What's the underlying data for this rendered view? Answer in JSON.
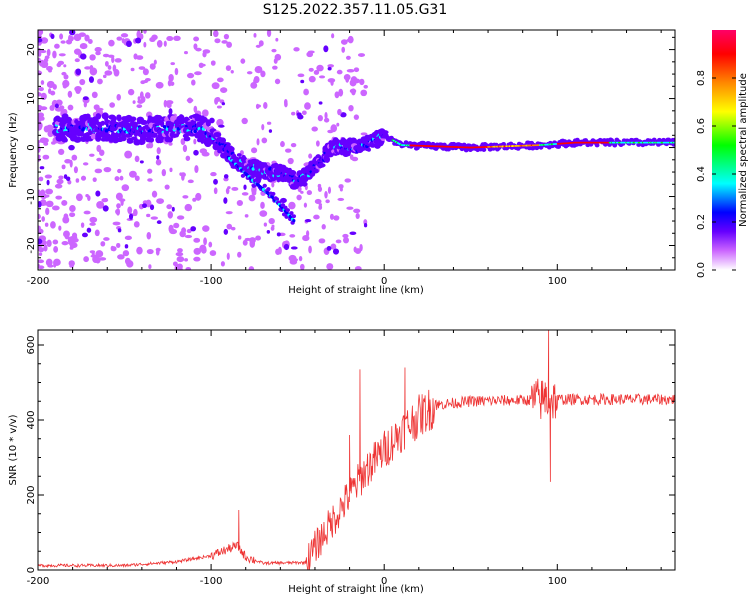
{
  "title": "S125.2022.357.11.05.G31",
  "chart_data": [
    {
      "type": "heatmap",
      "xlabel": "Height of straight line (km)",
      "ylabel": "Frequency (Hz)",
      "xlim": [
        -200,
        168
      ],
      "ylim": [
        -25,
        24
      ],
      "x_ticks": [
        -200,
        -100,
        0,
        100
      ],
      "y_ticks": [
        -20,
        -10,
        0,
        10,
        20
      ],
      "colorbar": {
        "label": "Normalized spectral amplitude",
        "range": [
          0,
          1
        ],
        "ticks": [
          "0.0",
          "0.2",
          "0.4",
          "0.6",
          "0.8"
        ],
        "colormap": [
          "#ffffff",
          "#cc66ff",
          "#6600ff",
          "#0000ff",
          "#00ffff",
          "#00ff00",
          "#ffff00",
          "#ff8800",
          "#ff0000",
          "#ff0066"
        ]
      },
      "ridge": [
        {
          "x": -180,
          "y": 4
        },
        {
          "x": -160,
          "y": 4
        },
        {
          "x": -140,
          "y": 3.5
        },
        {
          "x": -120,
          "y": 4
        },
        {
          "x": -105,
          "y": 4
        },
        {
          "x": -95,
          "y": 1
        },
        {
          "x": -85,
          "y": -3
        },
        {
          "x": -70,
          "y": -5
        },
        {
          "x": -60,
          "y": -5
        },
        {
          "x": -50,
          "y": -7
        },
        {
          "x": -40,
          "y": -4
        },
        {
          "x": -30,
          "y": 0
        },
        {
          "x": -15,
          "y": 0
        },
        {
          "x": 0,
          "y": 2.5
        },
        {
          "x": 10,
          "y": 0.5
        },
        {
          "x": 50,
          "y": 0
        },
        {
          "x": 90,
          "y": 0.5
        },
        {
          "x": 110,
          "y": 1
        },
        {
          "x": 168,
          "y": 1
        }
      ],
      "secondary_ridge": [
        {
          "x": -90,
          "y": -2
        },
        {
          "x": -75,
          "y": -7
        },
        {
          "x": -65,
          "y": -10
        },
        {
          "x": -57,
          "y": -13
        },
        {
          "x": -52,
          "y": -15
        }
      ]
    },
    {
      "type": "line",
      "xlabel": "Height of straight line (km)",
      "ylabel": "SNR (10 * v/v)",
      "xlim": [
        -200,
        168
      ],
      "ylim": [
        0,
        640
      ],
      "x_ticks": [
        -200,
        -100,
        0,
        100
      ],
      "y_ticks": [
        0,
        200,
        400,
        600
      ],
      "series": [
        {
          "color": "#ee3333",
          "trend": [
            {
              "x": -200,
              "y": 12
            },
            {
              "x": -150,
              "y": 12
            },
            {
              "x": -120,
              "y": 22
            },
            {
              "x": -100,
              "y": 38
            },
            {
              "x": -85,
              "y": 65
            },
            {
              "x": -80,
              "y": 35
            },
            {
              "x": -70,
              "y": 18
            },
            {
              "x": -45,
              "y": 20
            },
            {
              "x": -40,
              "y": 60
            },
            {
              "x": -30,
              "y": 130
            },
            {
              "x": -20,
              "y": 200
            },
            {
              "x": -10,
              "y": 270
            },
            {
              "x": 0,
              "y": 320
            },
            {
              "x": 10,
              "y": 370
            },
            {
              "x": 20,
              "y": 410
            },
            {
              "x": 30,
              "y": 440
            },
            {
              "x": 50,
              "y": 450
            },
            {
              "x": 100,
              "y": 455
            },
            {
              "x": 168,
              "y": 455
            }
          ],
          "spikes": [
            {
              "x": -84,
              "y": 160
            },
            {
              "x": -14,
              "y": 535
            },
            {
              "x": -20,
              "y": 360
            },
            {
              "x": 12,
              "y": 540
            },
            {
              "x": 95,
              "y": 640
            },
            {
              "x": 96,
              "y": 235
            },
            {
              "x": 93,
              "y": 500
            }
          ]
        }
      ]
    }
  ]
}
